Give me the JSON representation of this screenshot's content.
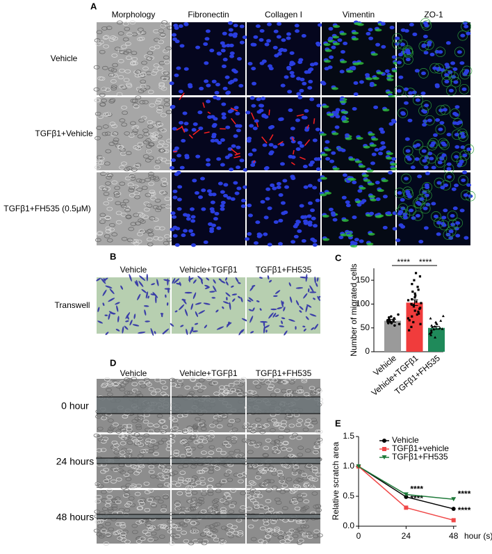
{
  "panel_a": {
    "label": "A",
    "columns": [
      "Morphology",
      "Fibronectin",
      "Collagen I",
      "Vimentin",
      "ZO-1"
    ],
    "rows": [
      "Vehicle",
      "TGFβ1+Vehicle",
      "TGFβ1+FH535 (0.5μM)"
    ]
  },
  "panel_b": {
    "label": "B",
    "columns": [
      "Vehicle",
      "Vehicle+TGFβ1",
      "TGFβ1+FH535"
    ],
    "rows": [
      "Transwell"
    ]
  },
  "panel_d": {
    "label": "D",
    "columns": [
      "Vehicle",
      "Vehicle+TGFβ1",
      "TGFβ1+FH535"
    ],
    "rows": [
      "0 hour",
      "24 hours",
      "48 hours"
    ]
  },
  "chart_data": [
    {
      "type": "bar",
      "label": "C",
      "y_label": "Number of migrated cells",
      "categories": [
        "Vehicle",
        "Vehicle+TGFβ1",
        "TGFβ1+FH535"
      ],
      "values": [
        65,
        103,
        50
      ],
      "errors": [
        3,
        6,
        3
      ],
      "colors": [
        "#9a9a9a",
        "#f03c3c",
        "#1f8a5a"
      ],
      "points": [
        [
          55,
          58,
          60,
          62,
          63,
          65,
          66,
          68,
          70,
          72,
          74,
          78,
          60,
          64
        ],
        [
          45,
          52,
          58,
          62,
          66,
          70,
          74,
          78,
          80,
          84,
          86,
          90,
          92,
          95,
          98,
          100,
          102,
          105,
          108,
          110,
          114,
          118,
          122,
          126,
          130,
          136,
          142,
          150,
          158,
          165
        ],
        [
          30,
          35,
          38,
          42,
          45,
          48,
          50,
          52,
          55,
          58,
          60,
          62,
          65,
          70,
          75,
          40,
          47,
          53
        ]
      ],
      "annotations": [
        "****",
        "****"
      ],
      "ylim": [
        0,
        175
      ],
      "yticks": [
        0,
        50,
        100,
        150
      ]
    },
    {
      "type": "line",
      "label": "E",
      "y_label": "Relative scratch area",
      "x_label": "hour (s)",
      "x": [
        0,
        24,
        48
      ],
      "xlim": [
        0,
        49.5
      ],
      "xticks": [
        0,
        24,
        48
      ],
      "ylim": [
        0,
        1.5
      ],
      "yticks": [
        {
          "value": 0,
          "label": "0.0"
        },
        {
          "value": 0.5,
          "label": "0.5"
        },
        {
          "value": 1,
          "label": "1.0"
        },
        {
          "value": 1.5,
          "label": "1.5"
        }
      ],
      "series": [
        {
          "name": "Vehicle",
          "color": "#000000",
          "marker": "circle",
          "values": [
            1,
            0.49,
            0.29
          ],
          "significance": [
            null,
            "****",
            "****"
          ]
        },
        {
          "name": "TGFβ1+vehicle",
          "color": "#f04848",
          "marker": "square",
          "values": [
            1,
            0.31,
            0.1
          ]
        },
        {
          "name": "TGFβ1+FH535",
          "color": "#1f7a3a",
          "marker": "triangle-down",
          "values": [
            1,
            0.53,
            0.45
          ],
          "significance": [
            null,
            "****",
            "****"
          ]
        }
      ]
    }
  ]
}
